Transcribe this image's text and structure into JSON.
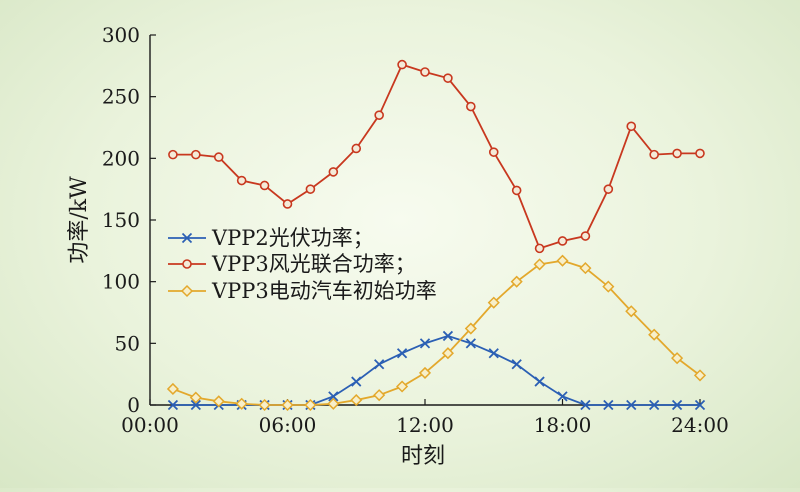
{
  "chart_data": {
    "type": "line",
    "xlabel": "时刻",
    "ylabel": "功率/kW",
    "x_ticks": [
      "00:00",
      "06:00",
      "12:00",
      "18:00",
      "24:00"
    ],
    "x_tick_values": [
      0,
      6,
      12,
      18,
      24
    ],
    "xlim": [
      0,
      24
    ],
    "ylim": [
      0,
      300
    ],
    "y_ticks": [
      0,
      50,
      100,
      150,
      200,
      250,
      300
    ],
    "grid": false,
    "legend_position": "left-middle",
    "x": [
      1,
      2,
      3,
      4,
      5,
      6,
      7,
      8,
      9,
      10,
      11,
      12,
      13,
      14,
      15,
      16,
      17,
      18,
      19,
      20,
      21,
      22,
      23,
      24
    ],
    "series": [
      {
        "name": "VPP2光伏功率；",
        "color": "#2b5fb4",
        "marker": "x",
        "values": [
          0,
          0,
          0,
          0,
          0,
          0,
          0,
          7,
          19,
          33,
          42,
          50,
          56,
          50,
          42,
          33,
          19,
          7,
          0,
          0,
          0,
          0,
          0,
          0
        ]
      },
      {
        "name": "VPP3风光联合功率；",
        "color": "#c8381f",
        "marker": "circle",
        "values": [
          203,
          203,
          201,
          182,
          178,
          163,
          175,
          189,
          208,
          235,
          276,
          270,
          265,
          242,
          205,
          174,
          127,
          133,
          137,
          175,
          226,
          203,
          204,
          204
        ]
      },
      {
        "name": "VPP3电动汽车初始功率",
        "color": "#e3a82c",
        "marker": "diamond",
        "values": [
          13,
          6,
          3,
          1,
          0,
          0,
          0,
          1,
          4,
          8,
          15,
          26,
          42,
          62,
          83,
          100,
          114,
          117,
          111,
          96,
          76,
          57,
          38,
          24
        ]
      }
    ]
  }
}
